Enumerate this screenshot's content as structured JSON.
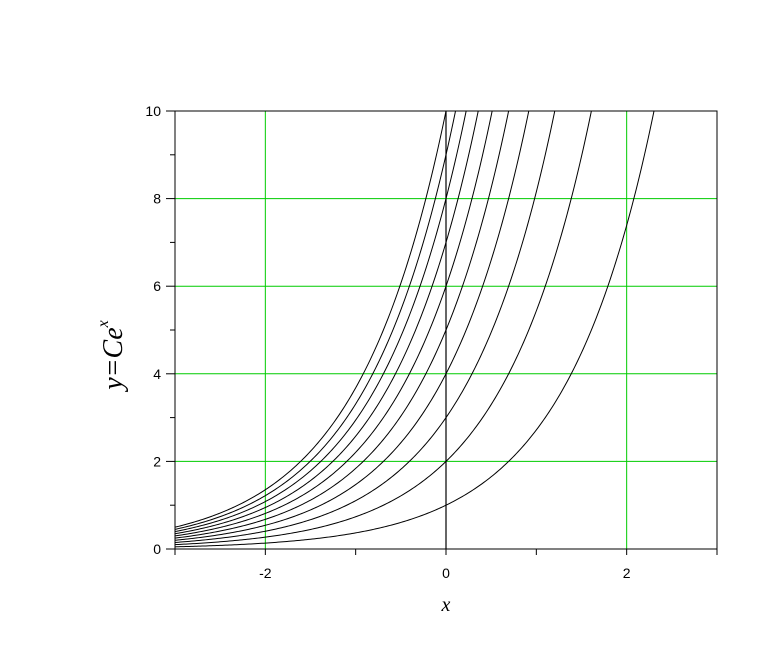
{
  "chart_data": {
    "type": "line",
    "title": "",
    "xlabel": "x",
    "ylabel": {
      "base": "y=Ce",
      "superscript": "x"
    },
    "xlim": [
      -3,
      3
    ],
    "ylim": [
      0,
      10
    ],
    "x_ticks_labeled": [
      -2,
      0,
      2
    ],
    "x_ticks_minor": [
      -3,
      -1,
      1,
      3
    ],
    "y_ticks_labeled": [
      0,
      2,
      4,
      6,
      8,
      10
    ],
    "y_ticks_minor": [
      1,
      3,
      5,
      7,
      9
    ],
    "grid": true,
    "grid_color": "#00cc00",
    "line_color": "#000000",
    "function": "y = C * exp(x)",
    "x_range": [
      -3,
      3
    ],
    "series": [
      {
        "C": 1
      },
      {
        "C": 2
      },
      {
        "C": 3
      },
      {
        "C": 4
      },
      {
        "C": 5
      },
      {
        "C": 6
      },
      {
        "C": 7
      },
      {
        "C": 8
      },
      {
        "C": 9
      },
      {
        "C": 10
      }
    ]
  }
}
